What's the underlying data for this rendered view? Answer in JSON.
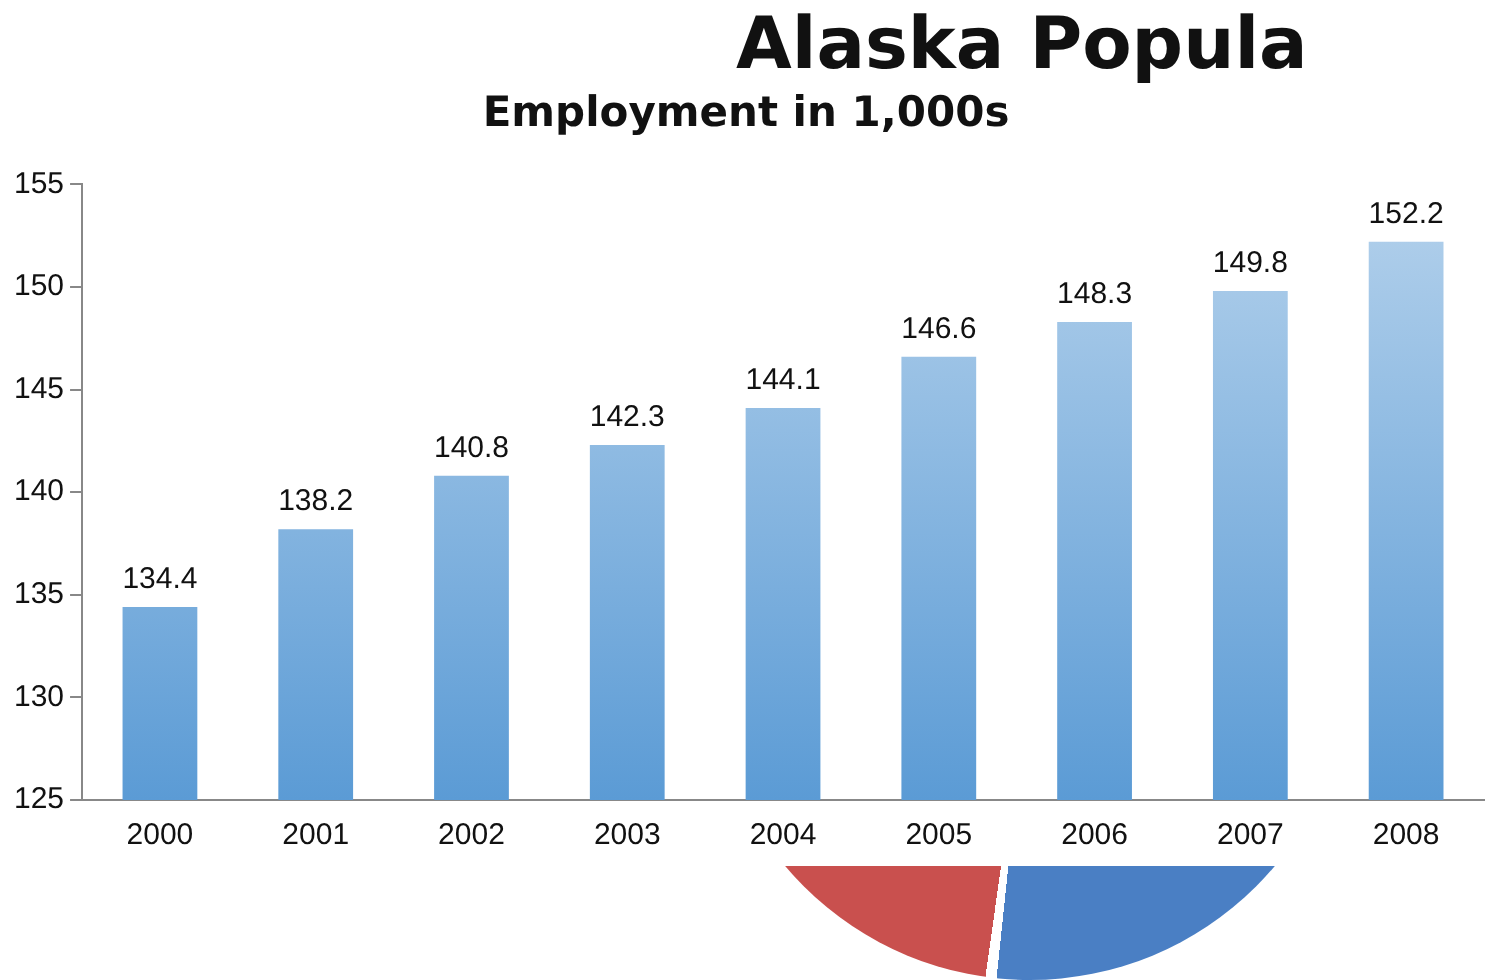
{
  "chart_data": {
    "type": "bar",
    "title": "Employment in 1,000s",
    "annotations": [
      "Alaska Popula"
    ],
    "categories": [
      "2000",
      "2001",
      "2002",
      "2003",
      "2004",
      "2005",
      "2006",
      "2007",
      "2008"
    ],
    "values": [
      134.4,
      138.2,
      140.8,
      142.3,
      144.1,
      146.6,
      148.3,
      149.8,
      152.2
    ],
    "color": "#5b9bd5",
    "ylim": [
      125,
      155
    ],
    "yticks": [
      125,
      130,
      135,
      140,
      145,
      150,
      155
    ],
    "grid": false,
    "legend": false,
    "data_labels": true
  }
}
